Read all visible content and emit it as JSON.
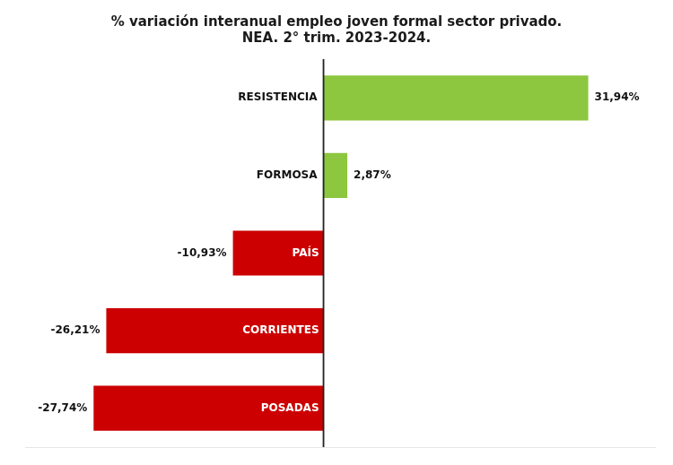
{
  "chart_data": {
    "type": "bar",
    "orientation": "horizontal",
    "title": "% variación interanual empleo joven formal sector privado.\nNEA. 2° trim. 2023-2024.",
    "categories": [
      "POSADAS",
      "CORRIENTES",
      "PAÍS",
      "FORMOSA",
      "RESISTENCIA"
    ],
    "values": [
      -27.74,
      -26.21,
      -10.93,
      2.87,
      31.94
    ],
    "value_labels": [
      "-27,74%",
      "-26,21%",
      "-10,93%",
      "2,87%",
      "31,94%"
    ],
    "data_labels": true,
    "colors": [
      "#cc0000",
      "#cc0000",
      "#cc0000",
      "#8dc63f",
      "#8dc63f"
    ],
    "xlim": [
      -36,
      40
    ],
    "grid": false,
    "tick_labels": false
  }
}
